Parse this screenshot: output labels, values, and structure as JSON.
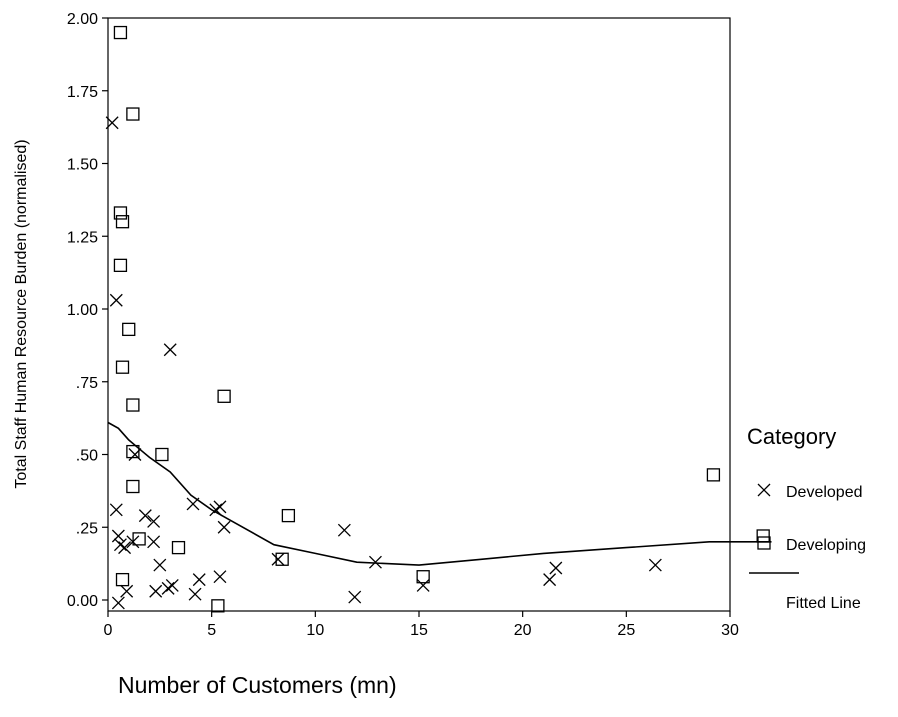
{
  "chart_data": {
    "type": "scatter",
    "ylabel": "Total Staff Human Resource Burden (normalised)",
    "xlabel": "Number of Customers (mn)",
    "xlim": [
      0,
      30
    ],
    "ylim": [
      0,
      2.0
    ],
    "x_ticks": [
      {
        "value": 0,
        "label": "0"
      },
      {
        "value": 5,
        "label": "5"
      },
      {
        "value": 10,
        "label": "10"
      },
      {
        "value": 15,
        "label": "15"
      },
      {
        "value": 20,
        "label": "20"
      },
      {
        "value": 25,
        "label": "25"
      },
      {
        "value": 30,
        "label": "30"
      }
    ],
    "y_ticks": [
      {
        "value": 0,
        "label": "0.00"
      },
      {
        "value": 0.25,
        "label": ".25"
      },
      {
        "value": 0.5,
        "label": ".50"
      },
      {
        "value": 0.75,
        "label": ".75"
      },
      {
        "value": 1.0,
        "label": "1.00"
      },
      {
        "value": 1.25,
        "label": "1.25"
      },
      {
        "value": 1.5,
        "label": "1.50"
      },
      {
        "value": 1.75,
        "label": "1.75"
      },
      {
        "value": 2.0,
        "label": "2.00"
      }
    ],
    "grid": false,
    "legend": {
      "title": "Category",
      "position": "right",
      "entries": [
        {
          "name": "Developed",
          "marker": "x"
        },
        {
          "name": "Developing",
          "marker": "square"
        },
        {
          "name": "Fitted Line",
          "marker": "line"
        }
      ]
    },
    "series": [
      {
        "name": "Developed",
        "marker": "x",
        "points": [
          {
            "x": 0.2,
            "y": 1.64
          },
          {
            "x": 0.4,
            "y": 1.03
          },
          {
            "x": 0.4,
            "y": 0.31
          },
          {
            "x": 0.5,
            "y": 0.22
          },
          {
            "x": 0.6,
            "y": 0.19
          },
          {
            "x": 0.8,
            "y": 0.18
          },
          {
            "x": 0.5,
            "y": -0.01
          },
          {
            "x": 0.9,
            "y": 0.03
          },
          {
            "x": 1.3,
            "y": 0.5
          },
          {
            "x": 1.2,
            "y": 0.2
          },
          {
            "x": 1.8,
            "y": 0.29
          },
          {
            "x": 2.2,
            "y": 0.27
          },
          {
            "x": 2.2,
            "y": 0.2
          },
          {
            "x": 2.5,
            "y": 0.12
          },
          {
            "x": 2.3,
            "y": 0.03
          },
          {
            "x": 3.0,
            "y": 0.86
          },
          {
            "x": 2.9,
            "y": 0.04
          },
          {
            "x": 3.1,
            "y": 0.05
          },
          {
            "x": 4.1,
            "y": 0.33
          },
          {
            "x": 4.4,
            "y": 0.07
          },
          {
            "x": 4.2,
            "y": 0.02
          },
          {
            "x": 5.2,
            "y": 0.31
          },
          {
            "x": 5.4,
            "y": 0.32
          },
          {
            "x": 5.6,
            "y": 0.25
          },
          {
            "x": 5.4,
            "y": 0.08
          },
          {
            "x": 8.2,
            "y": 0.14
          },
          {
            "x": 11.4,
            "y": 0.24
          },
          {
            "x": 11.9,
            "y": 0.01
          },
          {
            "x": 12.9,
            "y": 0.13
          },
          {
            "x": 15.2,
            "y": 0.05
          },
          {
            "x": 21.3,
            "y": 0.07
          },
          {
            "x": 21.6,
            "y": 0.11
          },
          {
            "x": 26.4,
            "y": 0.12
          }
        ]
      },
      {
        "name": "Developing",
        "marker": "square",
        "points": [
          {
            "x": 0.6,
            "y": 1.95
          },
          {
            "x": 1.2,
            "y": 1.67
          },
          {
            "x": 0.6,
            "y": 1.33
          },
          {
            "x": 0.7,
            "y": 1.3
          },
          {
            "x": 0.6,
            "y": 1.15
          },
          {
            "x": 1.0,
            "y": 0.93
          },
          {
            "x": 0.7,
            "y": 0.8
          },
          {
            "x": 1.2,
            "y": 0.67
          },
          {
            "x": 5.6,
            "y": 0.7
          },
          {
            "x": 1.2,
            "y": 0.51
          },
          {
            "x": 2.6,
            "y": 0.5
          },
          {
            "x": 1.2,
            "y": 0.39
          },
          {
            "x": 1.5,
            "y": 0.21
          },
          {
            "x": 3.4,
            "y": 0.18
          },
          {
            "x": 8.7,
            "y": 0.29
          },
          {
            "x": 8.4,
            "y": 0.14
          },
          {
            "x": 0.7,
            "y": 0.07
          },
          {
            "x": 5.3,
            "y": -0.02
          },
          {
            "x": 15.2,
            "y": 0.08
          },
          {
            "x": 29.2,
            "y": 0.43
          },
          {
            "x": 31.6,
            "y": 0.22
          }
        ]
      },
      {
        "name": "Fitted Line",
        "marker": "line",
        "points": [
          {
            "x": 0.0,
            "y": 0.61
          },
          {
            "x": 0.5,
            "y": 0.59
          },
          {
            "x": 1.0,
            "y": 0.55
          },
          {
            "x": 1.5,
            "y": 0.52
          },
          {
            "x": 2.0,
            "y": 0.49
          },
          {
            "x": 3.0,
            "y": 0.44
          },
          {
            "x": 4.0,
            "y": 0.36
          },
          {
            "x": 5.0,
            "y": 0.31
          },
          {
            "x": 6.0,
            "y": 0.27
          },
          {
            "x": 8.0,
            "y": 0.19
          },
          {
            "x": 10.0,
            "y": 0.16
          },
          {
            "x": 12.0,
            "y": 0.13
          },
          {
            "x": 15.0,
            "y": 0.12
          },
          {
            "x": 18.0,
            "y": 0.14
          },
          {
            "x": 21.0,
            "y": 0.16
          },
          {
            "x": 25.0,
            "y": 0.18
          },
          {
            "x": 29.0,
            "y": 0.2
          },
          {
            "x": 32.0,
            "y": 0.2
          }
        ]
      }
    ]
  }
}
